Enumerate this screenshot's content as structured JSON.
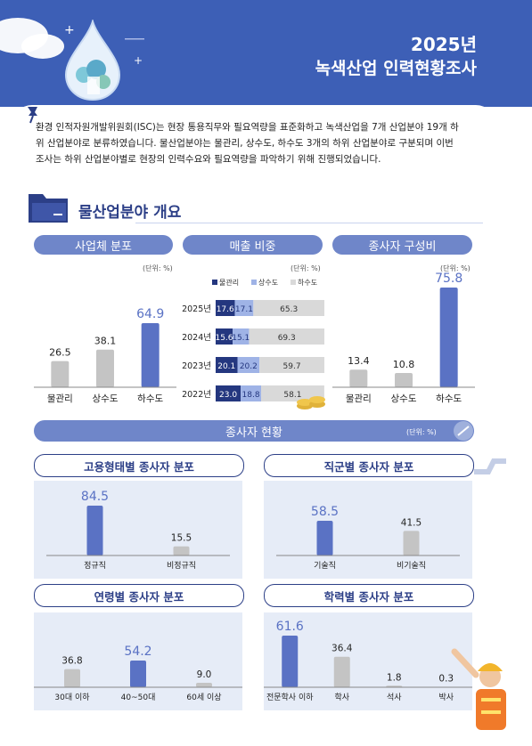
{
  "header": {
    "year": "2025년",
    "title": "녹색산업 인력현황조사"
  },
  "intro": {
    "text": "환경 인적자원개발위원회(ISC)는 현장 통용직무와 필요역량을 표준화하고 녹색산업을 7개 산업분야 19개 하위 산업분야로 분류하였습니다. 물산업분야는 물관리, 상수도, 하수도 3개의 하위 산업분야로 구분되며 이번 조사는 하위 산업분야별로 현장의 인력수요와 필요역량을 파악하기 위해 진행되었습니다."
  },
  "section": {
    "title": "물산업분야 개요"
  },
  "subsection": {
    "title": "종사자 현황",
    "unit": "(단위: %)"
  },
  "colors": {
    "header": "#3d5fb6",
    "bar": "#5a72c4",
    "bar_gray": "#c4c4c4",
    "pill": "#6f86c9",
    "navy": "#2c3f87"
  },
  "chart_data": [
    {
      "id": "business",
      "type": "bar",
      "title": "사업체 분포",
      "unit": "(단위: %)",
      "categories": [
        "물관리",
        "상수도",
        "하수도"
      ],
      "values": [
        26.5,
        38.1,
        64.9
      ]
    },
    {
      "id": "sales",
      "type": "bar",
      "title": "매출 비중",
      "unit": "(단위: %)",
      "stacked": true,
      "orientation": "horizontal",
      "categories": [
        "2025년",
        "2024년",
        "2023년",
        "2022년"
      ],
      "series": [
        {
          "name": "물관리",
          "values": [
            17.6,
            15.6,
            20.1,
            23.0
          ]
        },
        {
          "name": "상수도",
          "values": [
            17.1,
            15.1,
            20.2,
            18.8
          ]
        },
        {
          "name": "하수도",
          "values": [
            65.3,
            69.3,
            59.7,
            58.1
          ]
        }
      ]
    },
    {
      "id": "workers",
      "type": "bar",
      "title": "종사자 구성비",
      "unit": "(단위: %)",
      "categories": [
        "물관리",
        "상수도",
        "하수도"
      ],
      "values": [
        13.4,
        10.8,
        75.8
      ]
    },
    {
      "id": "employment",
      "type": "bar",
      "title": "고용형태별 종사자 분포",
      "categories": [
        "정규직",
        "비정규직"
      ],
      "values": [
        84.5,
        15.5
      ]
    },
    {
      "id": "jobgroup",
      "type": "bar",
      "title": "직군별 종사자 분포",
      "categories": [
        "기술직",
        "비기술직"
      ],
      "values": [
        58.5,
        41.5
      ]
    },
    {
      "id": "age",
      "type": "bar",
      "title": "연령별 종사자 분포",
      "categories": [
        "30대 이하",
        "40~50대",
        "60세 이상"
      ],
      "values": [
        36.8,
        54.2,
        9.0
      ]
    },
    {
      "id": "education",
      "type": "bar",
      "title": "학력별 종사자 분포",
      "categories": [
        "전문학사 이하",
        "학사",
        "석사",
        "박사"
      ],
      "values": [
        61.6,
        36.4,
        1.8,
        0.3
      ]
    }
  ]
}
